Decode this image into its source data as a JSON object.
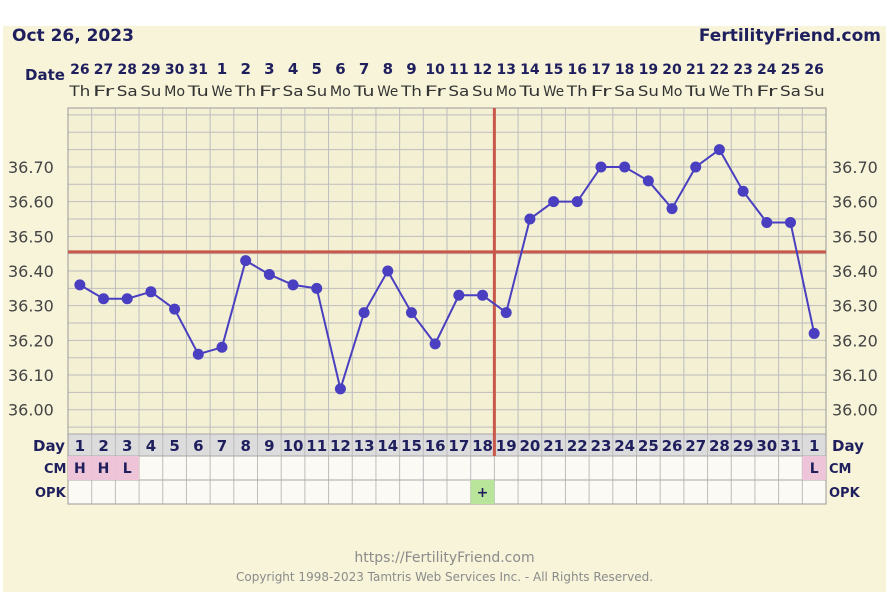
{
  "header": {
    "title": "Oct 26, 2023",
    "brand": "FertilityFriend.com"
  },
  "footer": {
    "url": "https://FertilityFriend.com",
    "copyright": "Copyright 1998-2023 Tamtris Web Services Inc. - All Rights Reserved."
  },
  "colors": {
    "line": "#4a3fc0",
    "coverline": "#c8584a",
    "ovulation": "#c8584a",
    "cm_fill": "#eec5d8",
    "opk_fill": "#b9e59a",
    "grid": "#bdbdbd",
    "background": "#f7f4d9",
    "text": "#1f1f5e"
  },
  "chart_data": {
    "type": "line",
    "dates": [
      "26",
      "27",
      "28",
      "29",
      "30",
      "31",
      "1",
      "2",
      "3",
      "4",
      "5",
      "6",
      "7",
      "8",
      "9",
      "10",
      "11",
      "12",
      "13",
      "14",
      "15",
      "16",
      "17",
      "18",
      "19",
      "20",
      "21",
      "22",
      "23",
      "24",
      "25",
      "26"
    ],
    "weekdays": [
      "Th",
      "Fr",
      "Sa",
      "Su",
      "Mo",
      "Tu",
      "We",
      "Th",
      "Fr",
      "Sa",
      "Su",
      "Mo",
      "Tu",
      "We",
      "Th",
      "Fr",
      "Sa",
      "Su",
      "Mo",
      "Tu",
      "We",
      "Th",
      "Fr",
      "Sa",
      "Su",
      "Mo",
      "Tu",
      "We",
      "Th",
      "Fr",
      "Sa",
      "Su"
    ],
    "days": [
      "1",
      "2",
      "3",
      "4",
      "5",
      "6",
      "7",
      "8",
      "9",
      "10",
      "11",
      "12",
      "13",
      "14",
      "15",
      "16",
      "17",
      "18",
      "19",
      "20",
      "21",
      "22",
      "23",
      "24",
      "25",
      "26",
      "27",
      "28",
      "29",
      "30",
      "31",
      "1"
    ],
    "temperatures": [
      36.36,
      36.32,
      36.32,
      36.34,
      36.29,
      36.16,
      36.18,
      36.43,
      36.39,
      36.36,
      36.35,
      36.06,
      36.28,
      36.4,
      36.28,
      36.19,
      36.33,
      36.33,
      36.28,
      36.55,
      36.6,
      36.6,
      36.7,
      36.7,
      36.66,
      36.58,
      36.7,
      36.75,
      36.63,
      36.54,
      36.54,
      36.22
    ],
    "y_ticks": [
      "36.70",
      "36.60",
      "36.50",
      "36.40",
      "36.30",
      "36.20",
      "36.10",
      "36.00"
    ],
    "y_tick_values": [
      36.7,
      36.6,
      36.5,
      36.4,
      36.3,
      36.2,
      36.1,
      36.0
    ],
    "ylim": [
      35.93,
      36.87
    ],
    "coverline": 36.455,
    "ovulation_day": 19,
    "row_labels": {
      "date": "Date",
      "day": "Day",
      "cm": "CM",
      "opk": "OPK"
    },
    "cm": [
      "H",
      "H",
      "L",
      "",
      "",
      "",
      "",
      "",
      "",
      "",
      "",
      "",
      "",
      "",
      "",
      "",
      "",
      "",
      "",
      "",
      "",
      "",
      "",
      "",
      "",
      "",
      "",
      "",
      "",
      "",
      "",
      "L"
    ],
    "opk": [
      "",
      "",
      "",
      "",
      "",
      "",
      "",
      "",
      "",
      "",
      "",
      "",
      "",
      "",
      "",
      "",
      "",
      "+",
      "",
      "",
      "",
      "",
      "",
      "",
      "",
      "",
      "",
      "",
      "",
      "",
      "",
      ""
    ]
  }
}
